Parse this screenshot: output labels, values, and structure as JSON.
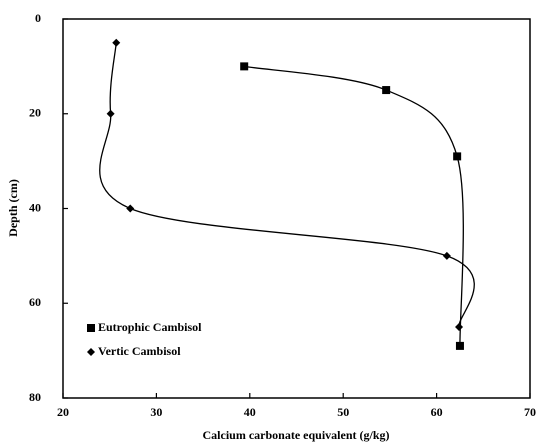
{
  "chart_data": {
    "type": "line",
    "xlabel": "Calcium carbonate equivalent (g/kg)",
    "ylabel": "Depth (cm)",
    "xlim": [
      20,
      70
    ],
    "xticks": [
      20,
      30,
      40,
      50,
      60,
      70
    ],
    "ylim": [
      0,
      80
    ],
    "yticks": [
      0,
      20,
      40,
      60,
      80
    ],
    "invert_y": true,
    "smooth": true,
    "legend": "lower left",
    "series": [
      {
        "name": "Eutrophic Cambisol",
        "color": "#000000",
        "marker": "square",
        "x": [
          39.4,
          54.6,
          62.2,
          62.5
        ],
        "values": [
          10,
          15,
          29,
          69
        ]
      },
      {
        "name": "Vertic Cambisol",
        "color": "#000000",
        "marker": "diamond",
        "x": [
          25.7,
          25.1,
          27.2,
          61.1,
          62.4
        ],
        "values": [
          5,
          20,
          40,
          50,
          65
        ]
      }
    ]
  }
}
